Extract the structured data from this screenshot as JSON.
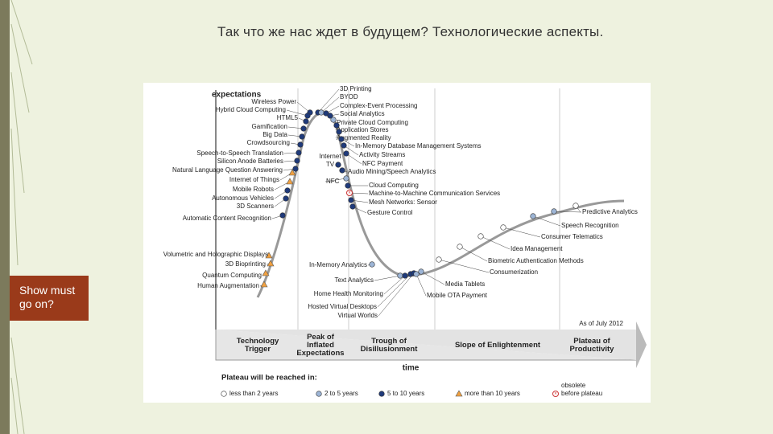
{
  "slide": {
    "title": "Так что же нас ждет в будущем? Технологические аспекты.",
    "side_label": "Show must go on?"
  },
  "hype_cycle": {
    "y_label": "expectations",
    "x_label": "time",
    "date_note": "As of July 2012",
    "technologies": [
      "Wireless Power",
      "Hybrid Cloud Computing",
      "HTML5",
      "Gamification",
      "Big Data",
      "Crowdsourcing",
      "Speech-to-Speech Translation",
      "Silicon Anode Batteries",
      "Natural Language Question Answering",
      "Internet of Things",
      "Mobile Robots",
      "Autonomous Vehicles",
      "3D Scanners",
      "Automatic Content Recognition",
      "Volumetric and Holographic Displays",
      "3D Bioprinting",
      "Quantum Computing",
      "Human Augmentation",
      "3D Printing",
      "BYOD",
      "Complex-Event Processing",
      "Social Analytics",
      "Private Cloud Computing",
      "Application Stores",
      "Augmented Reality",
      "In-Memory Database Management Systems",
      "Activity Streams",
      "NFC Payment",
      "Audio Mining/Speech Analytics",
      "Internet TV",
      "NFC",
      "Cloud Computing",
      "Machine-to-Machine Communication Services",
      "Mesh Networks: Sensor",
      "Gesture Control",
      "In-Memory Analytics",
      "Text Analytics",
      "Home Health Monitoring",
      "Hosted Virtual Desktops",
      "Virtual Worlds",
      "Media Tablets",
      "Mobile OTA Payment",
      "Consumerization",
      "Biometric Authentication Methods",
      "Idea Management",
      "Consumer Telematics",
      "Speech Recognition",
      "Predictive Analytics"
    ],
    "phases": [
      [
        "Technology",
        "Trigger"
      ],
      [
        "Peak of",
        "Inflated",
        "Expectations"
      ],
      [
        "Trough of",
        "Disillusionment"
      ],
      [
        "Slope of Enlightenment"
      ],
      [
        "Plateau of",
        "Productivity"
      ]
    ],
    "legend": {
      "title": "Plateau will be reached in:",
      "items": [
        [
          "less than 2 years"
        ],
        [
          "2 to 5 years"
        ],
        [
          "5 to 10 years"
        ],
        [
          "more than 10 years"
        ],
        [
          "obsolete",
          "before plateau"
        ]
      ]
    }
  }
}
